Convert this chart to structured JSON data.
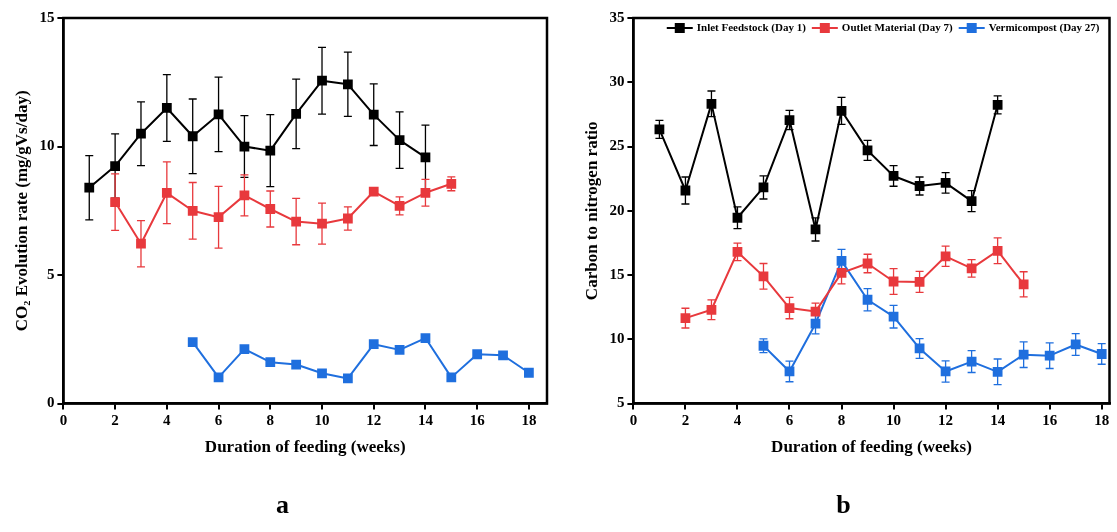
{
  "chart_data": [
    {
      "type": "line",
      "xlabel": "Duration of feeding (weeks)",
      "ylabel": "CO₂ Evolution rate (mg/gVs/day)",
      "xlim": [
        0,
        18.7
      ],
      "xticks": [
        0,
        2,
        4,
        6,
        8,
        10,
        12,
        14,
        16,
        18
      ],
      "ylim": [
        0,
        15
      ],
      "yticks": [
        0,
        5,
        10,
        15
      ],
      "grid": false,
      "legend": false,
      "marker": "square",
      "line_style": "solid",
      "annotations": [
        "a"
      ],
      "series": [
        {
          "color": "#000000",
          "x": [
            1,
            2,
            3,
            4,
            5,
            6,
            7,
            8,
            9,
            10,
            11,
            12,
            13,
            14
          ],
          "values": [
            8.4,
            9.24,
            10.5,
            11.5,
            10.4,
            11.25,
            10.0,
            9.84,
            11.27,
            12.56,
            12.42,
            11.24,
            10.25,
            9.58
          ],
          "errors": [
            1.25,
            1.25,
            1.24,
            1.3,
            1.45,
            1.45,
            1.2,
            1.4,
            1.35,
            1.3,
            1.25,
            1.2,
            1.1,
            1.25
          ]
        },
        {
          "color": "#e8393d",
          "x": [
            2,
            3,
            4,
            5,
            6,
            7,
            8,
            9,
            10,
            11,
            12,
            13,
            14,
            15
          ],
          "values": [
            7.84,
            6.22,
            8.2,
            7.5,
            7.25,
            8.1,
            7.57,
            7.08,
            7.0,
            7.2,
            8.25,
            7.69,
            8.2,
            8.55
          ],
          "errors": [
            1.1,
            0.9,
            1.2,
            1.1,
            1.2,
            0.8,
            0.7,
            0.9,
            0.8,
            0.45,
            null,
            0.35,
            0.52,
            0.27
          ]
        },
        {
          "color": "#1f6fde",
          "x": [
            5,
            6,
            7,
            8,
            9,
            10,
            11,
            12,
            13,
            14,
            15,
            16,
            17,
            18
          ],
          "values": [
            2.39,
            1.02,
            2.12,
            1.61,
            1.52,
            1.18,
            0.98,
            2.31,
            2.09,
            2.55,
            1.02,
            1.92,
            1.88,
            1.2
          ]
        }
      ]
    },
    {
      "type": "line",
      "xlabel": "Duration of feeding (weeks)",
      "ylabel": "Carbon to nitrogen ratio",
      "xlim": [
        0,
        18.3
      ],
      "xticks": [
        0,
        2,
        4,
        6,
        8,
        10,
        12,
        14,
        16,
        18
      ],
      "ylim": [
        5,
        35
      ],
      "yticks": [
        5,
        10,
        15,
        20,
        25,
        30,
        35
      ],
      "grid": false,
      "legend": "top right",
      "marker": "square",
      "line_style": "solid",
      "annotations": [
        "b"
      ],
      "series": [
        {
          "name": "Inlet Feedstock (Day 1)",
          "color": "#000000",
          "x": [
            1,
            2,
            3,
            4,
            5,
            6,
            7,
            8,
            9,
            10,
            11,
            12,
            13,
            14
          ],
          "values": [
            26.33,
            21.58,
            28.32,
            19.46,
            21.82,
            27.06,
            18.55,
            27.78,
            24.7,
            22.71,
            21.93,
            22.17,
            20.75,
            28.24
          ],
          "errors": [
            0.7,
            1.05,
            1.0,
            0.85,
            0.9,
            0.75,
            0.9,
            1.05,
            0.78,
            0.8,
            0.7,
            0.8,
            0.82,
            0.7
          ]
        },
        {
          "name": "Outlet Material (Day 7)",
          "color": "#e8393d",
          "x": [
            2,
            3,
            4,
            5,
            6,
            7,
            8,
            9,
            10,
            11,
            12,
            13,
            14,
            15
          ],
          "values": [
            11.65,
            12.3,
            16.8,
            14.9,
            12.43,
            12.16,
            15.17,
            15.9,
            14.5,
            14.47,
            16.46,
            15.52,
            16.89,
            14.28
          ],
          "errors": [
            0.77,
            0.77,
            0.68,
            1.0,
            0.83,
            0.66,
            0.85,
            0.72,
            1.0,
            0.82,
            0.79,
            0.68,
            1.0,
            0.98
          ]
        },
        {
          "name": "Vermicompost (Day 27)",
          "color": "#1f6fde",
          "x": [
            5,
            6,
            7,
            8,
            9,
            10,
            11,
            12,
            13,
            14,
            15,
            16,
            17,
            18
          ],
          "values": [
            9.5,
            7.5,
            11.22,
            16.1,
            13.08,
            11.76,
            9.29,
            7.5,
            8.27,
            7.47,
            8.81,
            8.73,
            9.6,
            8.86
          ],
          "errors": [
            0.54,
            0.8,
            0.8,
            0.9,
            0.87,
            0.88,
            0.77,
            0.83,
            0.85,
            1.0,
            1.0,
            1.0,
            0.85,
            0.8
          ]
        }
      ]
    }
  ]
}
